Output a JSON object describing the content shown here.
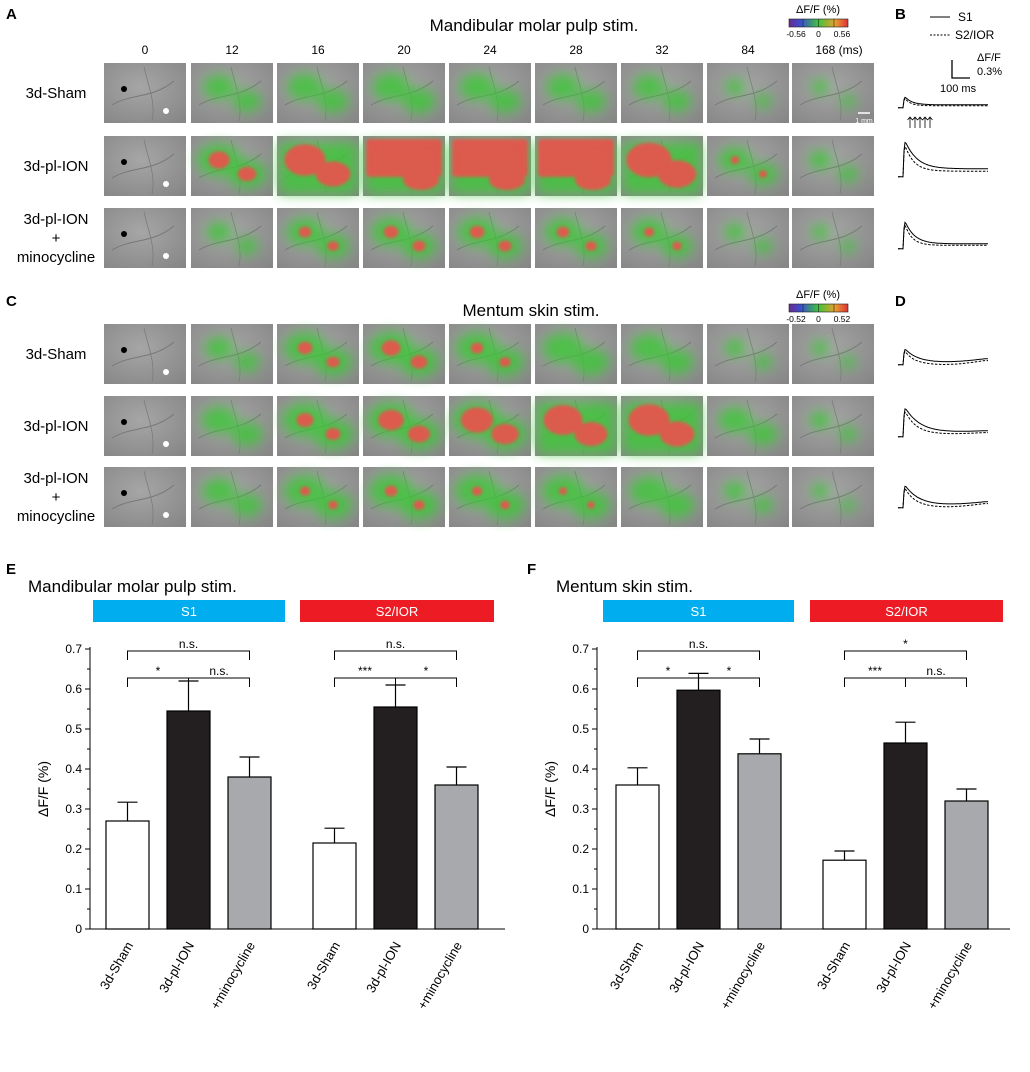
{
  "panel_letters": {
    "A": "A",
    "B": "B",
    "C": "C",
    "D": "D",
    "E": "E",
    "F": "F"
  },
  "panelA": {
    "title": "Mandibular molar pulp stim.",
    "time_labels": [
      "0",
      "12",
      "16",
      "20",
      "24",
      "28",
      "32",
      "84",
      "168 (ms)"
    ],
    "row_labels": [
      [
        "3d-Sham"
      ],
      [
        "3d-pl-ION"
      ],
      [
        "3d-pl-ION",
        "+",
        "minocycline"
      ]
    ],
    "colorbar": {
      "title": "ΔF/F (%)",
      "min_label": "-0.56",
      "mid_label": "0",
      "max_label": "0.56"
    },
    "scale_bar_label": "1 mm"
  },
  "panelB": {
    "legend": {
      "solid_label": "S1",
      "dashed_label": "S2/IOR"
    },
    "scale": {
      "y_label_1": "ΔF/F",
      "y_label_2": "0.3%",
      "x_label": "100 ms"
    }
  },
  "panelC": {
    "title": "Mentum skin stim.",
    "row_labels": [
      [
        "3d-Sham"
      ],
      [
        "3d-pl-ION"
      ],
      [
        "3d-pl-ION",
        "+",
        "minocycline"
      ]
    ],
    "colorbar": {
      "title": "ΔF/F (%)",
      "min_label": "-0.52",
      "mid_label": "0",
      "max_label": "0.52"
    }
  },
  "colors": {
    "s1_bar": "#00aeef",
    "s2_bar": "#ed1c24",
    "sham_fill": "#ffffff",
    "pl_ion_fill": "#231f20",
    "mino_fill": "#a7a9ac",
    "heat_green": "#3fc43a",
    "heat_red": "#e8534d"
  },
  "chart_data": [
    {
      "type": "bar",
      "panel": "E",
      "title": "Mandibular molar pulp stim.",
      "ylabel": "ΔF/F (%)",
      "ylim": [
        0,
        0.7
      ],
      "yticks": [
        "0",
        "0.1",
        "0.2",
        "0.3",
        "0.4",
        "0.5",
        "0.6",
        "0.7"
      ],
      "categories": [
        "3d-Sham",
        "3d-pl-ION",
        "+minocycline"
      ],
      "groups": [
        {
          "name": "S1",
          "values": [
            0.27,
            0.545,
            0.38
          ],
          "errors": [
            0.047,
            0.075,
            0.05
          ],
          "sig": {
            "left": "*",
            "right": "n.s.",
            "outer": "n.s."
          }
        },
        {
          "name": "S2/IOR",
          "values": [
            0.215,
            0.555,
            0.36
          ],
          "errors": [
            0.037,
            0.055,
            0.045
          ],
          "sig": {
            "left": "***",
            "right": "*",
            "outer": "n.s."
          }
        }
      ]
    },
    {
      "type": "bar",
      "panel": "F",
      "title": "Mentum skin stim.",
      "ylabel": "ΔF/F (%)",
      "ylim": [
        0,
        0.7
      ],
      "yticks": [
        "0",
        "0.1",
        "0.2",
        "0.3",
        "0.4",
        "0.5",
        "0.6",
        "0.7"
      ],
      "categories": [
        "3d-Sham",
        "3d-pl-ION",
        "+minocycline"
      ],
      "groups": [
        {
          "name": "S1",
          "values": [
            0.36,
            0.597,
            0.438
          ],
          "errors": [
            0.043,
            0.042,
            0.037
          ],
          "sig": {
            "left": "*",
            "right": "*",
            "outer": "n.s."
          }
        },
        {
          "name": "S2/IOR",
          "values": [
            0.172,
            0.465,
            0.32
          ],
          "errors": [
            0.023,
            0.052,
            0.03
          ],
          "sig": {
            "left": "***",
            "right": "n.s.",
            "outer": "*"
          }
        }
      ]
    }
  ]
}
